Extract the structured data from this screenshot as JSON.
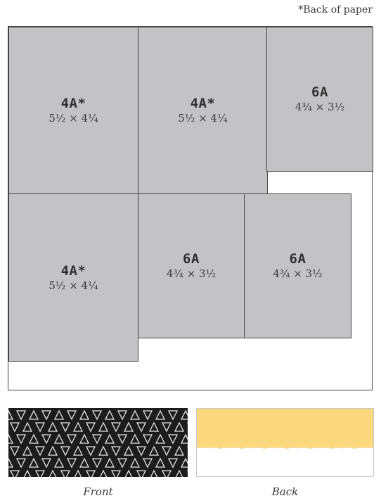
{
  "note": "*Back of paper",
  "pieces": [
    {
      "code": "4A*",
      "dims": "5½ × 4¼"
    },
    {
      "code": "4A*",
      "dims": "5½ × 4¼"
    },
    {
      "code": "6A",
      "dims": "4¾ × 3½"
    },
    {
      "code": "4A*",
      "dims": "5½ × 4¼"
    },
    {
      "code": "6A",
      "dims": "4¾ × 3½"
    },
    {
      "code": "6A",
      "dims": "4¾ × 3½"
    }
  ],
  "swatches": {
    "front": {
      "caption": "Front",
      "color": "#1c1c1c",
      "pattern": "white-outlined-triangles"
    },
    "back": {
      "caption": "Back",
      "color": "#fbd77e",
      "paper": "#ffffff"
    }
  },
  "colors": {
    "piece_fill": "#c3c3c6",
    "outline": "#444444"
  }
}
